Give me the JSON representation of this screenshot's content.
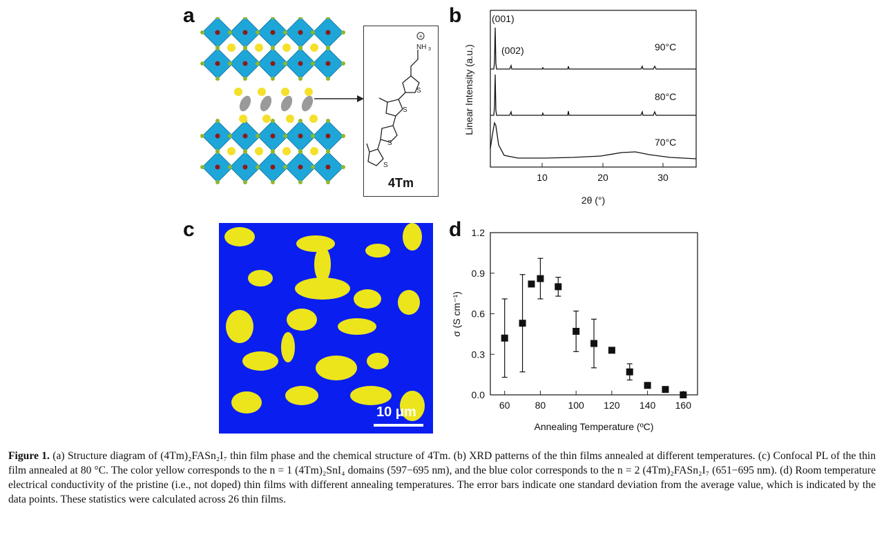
{
  "panels": {
    "a": "a",
    "b": "b",
    "c": "c",
    "d": "d"
  },
  "panel_a": {
    "molecule_label": "4Tm",
    "nh3_label": "NH",
    "nh3_sub": "3",
    "s_label": "S"
  },
  "panel_b": {
    "ylabel": "Linear Intensity (a.u.)",
    "xlabel": "2θ (°)",
    "xticks": [
      "10",
      "20",
      "30"
    ],
    "peak_labels": [
      "(001)",
      "(002)"
    ],
    "temps": [
      "90°C",
      "80°C",
      "70°C"
    ]
  },
  "panel_c": {
    "scalebar": "10 μm"
  },
  "chart_data": {
    "type": "scatter",
    "xlabel": "Annealing Temperature (ºC)",
    "ylabel": "σ (S cm⁻¹)",
    "xlim": [
      52,
      168
    ],
    "ylim": [
      0,
      1.2
    ],
    "xticks": [
      60,
      80,
      100,
      120,
      140,
      160
    ],
    "yticks": [
      "0.0",
      "0.3",
      "0.6",
      "0.9",
      "1.2"
    ],
    "grid": false,
    "points": [
      {
        "x": 60,
        "y": 0.42,
        "err": 0.29
      },
      {
        "x": 70,
        "y": 0.53,
        "err": 0.36
      },
      {
        "x": 75,
        "y": 0.82,
        "err": 0.0
      },
      {
        "x": 80,
        "y": 0.86,
        "err": 0.15
      },
      {
        "x": 90,
        "y": 0.8,
        "err": 0.07
      },
      {
        "x": 100,
        "y": 0.47,
        "err": 0.15
      },
      {
        "x": 110,
        "y": 0.38,
        "err": 0.18
      },
      {
        "x": 120,
        "y": 0.33,
        "err": 0.0
      },
      {
        "x": 130,
        "y": 0.17,
        "err": 0.06
      },
      {
        "x": 140,
        "y": 0.07,
        "err": 0.0
      },
      {
        "x": 150,
        "y": 0.04,
        "err": 0.0
      },
      {
        "x": 160,
        "y": 0.0,
        "err": 0.0
      }
    ]
  },
  "caption": {
    "label": "Figure 1.",
    "text": "(a) Structure diagram of (4Tm)₂FASn₂I₇ thin film phase and the chemical structure of 4Tm. (b) XRD patterns of the thin films annealed at different temperatures. (c) Confocal PL of the thin film annealed at 80 °C. The color yellow corresponds to the n = 1 (4Tm)₂SnI₄ domains (597−695 nm), and the blue color corresponds to the n = 2 (4Tm)₂FASn₂I₇ (651−695 nm). (d) Room temperature electrical conductivity of the pristine (i.e., not doped) thin films with different annealing temperatures. The error bars indicate one standard deviation from the average value, which is indicated by the data points. These statistics were calculated across 26 thin films."
  },
  "colors": {
    "octahedron": "#1ea6d8",
    "cation": "#f5e02a",
    "pl_blue": "#0a1ef0",
    "pl_yellow": "#ece51c"
  }
}
